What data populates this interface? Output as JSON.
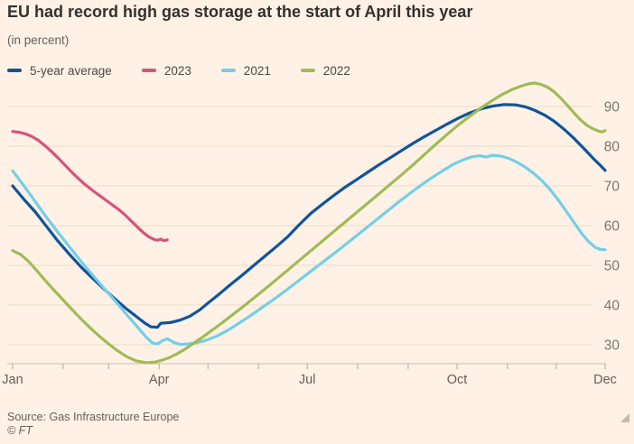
{
  "header": {
    "title": "EU had record high gas storage at the start of April this year",
    "subtitle": "(in percent)"
  },
  "footer": {
    "source": "Source: Gas Infrastructure Europe",
    "copyright": "© FT"
  },
  "colors": {
    "background": "#fff1e5",
    "title_text": "#33302e",
    "muted_text": "#66605b",
    "legend_text": "#4d4843",
    "gridline": "#eddac6",
    "axis_line": "#cbbfae",
    "tick": "#b3a896",
    "y_label": "#7d766e",
    "x_label": "#66605b"
  },
  "chart_data": {
    "type": "line",
    "title": "EU had record high gas storage at the start of April this year",
    "unit": "percent",
    "x_unit": "day_of_year",
    "x_axis": {
      "month_tick_days": [
        1,
        32,
        60,
        91,
        121,
        152,
        182,
        213,
        244,
        274,
        305,
        335,
        365
      ],
      "labels": [
        {
          "label": "Jan",
          "day": 1
        },
        {
          "label": "Apr",
          "day": 91
        },
        {
          "label": "Jul",
          "day": 182
        },
        {
          "label": "Oct",
          "day": 274
        },
        {
          "label": "Dec",
          "day": 365
        }
      ]
    },
    "y_axis": {
      "side": "right",
      "gridlines": [
        30,
        40,
        50,
        60,
        70,
        80,
        90
      ],
      "min": 24.5,
      "max": 97
    },
    "legend_position": "top",
    "series": [
      {
        "name": "5-year average",
        "color": "#0f5499",
        "points": [
          [
            1,
            70
          ],
          [
            8,
            66.6
          ],
          [
            15,
            63.4
          ],
          [
            22,
            59.7
          ],
          [
            29,
            56
          ],
          [
            36,
            52.7
          ],
          [
            43,
            49.6
          ],
          [
            50,
            46.8
          ],
          [
            57,
            44.1
          ],
          [
            64,
            41.5
          ],
          [
            71,
            39
          ],
          [
            78,
            36.8
          ],
          [
            82,
            35.5
          ],
          [
            86,
            34.5
          ],
          [
            90,
            34.4
          ],
          [
            92,
            35.4
          ],
          [
            98,
            35.6
          ],
          [
            104,
            36.2
          ],
          [
            110,
            37.2
          ],
          [
            116,
            38.8
          ],
          [
            121,
            40.5
          ],
          [
            128,
            42.8
          ],
          [
            135,
            45.2
          ],
          [
            142,
            47.5
          ],
          [
            149,
            49.9
          ],
          [
            156,
            52.3
          ],
          [
            163,
            54.7
          ],
          [
            170,
            57.2
          ],
          [
            177,
            60.2
          ],
          [
            184,
            63
          ],
          [
            191,
            65.3
          ],
          [
            198,
            67.5
          ],
          [
            205,
            69.6
          ],
          [
            212,
            71.5
          ],
          [
            219,
            73.4
          ],
          [
            226,
            75.3
          ],
          [
            233,
            77.1
          ],
          [
            240,
            78.9
          ],
          [
            247,
            80.7
          ],
          [
            254,
            82.4
          ],
          [
            261,
            84
          ],
          [
            268,
            85.6
          ],
          [
            275,
            87.1
          ],
          [
            282,
            88.4
          ],
          [
            289,
            89.4
          ],
          [
            296,
            90.1
          ],
          [
            303,
            90.5
          ],
          [
            310,
            90.4
          ],
          [
            316,
            89.9
          ],
          [
            322,
            89
          ],
          [
            328,
            87.8
          ],
          [
            334,
            86.2
          ],
          [
            340,
            84.2
          ],
          [
            346,
            81.9
          ],
          [
            352,
            79.4
          ],
          [
            358,
            76.8
          ],
          [
            362,
            75.2
          ],
          [
            365,
            73.9
          ]
        ]
      },
      {
        "name": "2023",
        "color": "#d6537b",
        "points": [
          [
            1,
            83.7
          ],
          [
            5,
            83.5
          ],
          [
            9,
            83.1
          ],
          [
            13,
            82.4
          ],
          [
            17,
            81.4
          ],
          [
            21,
            80.1
          ],
          [
            25,
            78.6
          ],
          [
            29,
            77
          ],
          [
            33,
            75.3
          ],
          [
            37,
            73.6
          ],
          [
            41,
            72
          ],
          [
            45,
            70.5
          ],
          [
            49,
            69.2
          ],
          [
            52,
            68.3
          ],
          [
            55,
            67.4
          ],
          [
            58,
            66.5
          ],
          [
            61,
            65.6
          ],
          [
            64,
            64.7
          ],
          [
            67,
            63.8
          ],
          [
            70,
            62.7
          ],
          [
            73,
            61.5
          ],
          [
            76,
            60.3
          ],
          [
            79,
            59.1
          ],
          [
            82,
            58
          ],
          [
            85,
            57.1
          ],
          [
            88,
            56.5
          ],
          [
            90,
            56.3
          ],
          [
            92,
            56.6
          ],
          [
            94,
            56.2
          ],
          [
            96,
            56.4
          ]
        ]
      },
      {
        "name": "2021",
        "color": "#73cfe8",
        "points": [
          [
            1,
            73.8
          ],
          [
            8,
            70
          ],
          [
            15,
            66
          ],
          [
            22,
            62
          ],
          [
            29,
            58.2
          ],
          [
            36,
            54.6
          ],
          [
            43,
            51
          ],
          [
            50,
            47.6
          ],
          [
            57,
            44.3
          ],
          [
            64,
            41
          ],
          [
            71,
            37.6
          ],
          [
            78,
            34.3
          ],
          [
            83,
            31.9
          ],
          [
            87,
            30.4
          ],
          [
            90,
            30.2
          ],
          [
            93,
            31
          ],
          [
            96,
            31.5
          ],
          [
            100,
            30.6
          ],
          [
            104,
            30.1
          ],
          [
            109,
            30.2
          ],
          [
            114,
            30.5
          ],
          [
            119,
            31
          ],
          [
            126,
            32.1
          ],
          [
            133,
            33.6
          ],
          [
            140,
            35.4
          ],
          [
            147,
            37.3
          ],
          [
            154,
            39.3
          ],
          [
            161,
            41.3
          ],
          [
            168,
            43.4
          ],
          [
            175,
            45.6
          ],
          [
            182,
            47.8
          ],
          [
            189,
            50
          ],
          [
            196,
            52.2
          ],
          [
            203,
            54.4
          ],
          [
            210,
            56.7
          ],
          [
            217,
            59
          ],
          [
            224,
            61.3
          ],
          [
            231,
            63.6
          ],
          [
            238,
            65.9
          ],
          [
            245,
            68.1
          ],
          [
            252,
            70.2
          ],
          [
            259,
            72.2
          ],
          [
            266,
            74
          ],
          [
            272,
            75.5
          ],
          [
            278,
            76.6
          ],
          [
            283,
            77.3
          ],
          [
            288,
            77.6
          ],
          [
            292,
            77.3
          ],
          [
            296,
            77.7
          ],
          [
            301,
            77.5
          ],
          [
            306,
            76.9
          ],
          [
            311,
            75.9
          ],
          [
            316,
            74.7
          ],
          [
            321,
            73.2
          ],
          [
            326,
            71.4
          ],
          [
            331,
            69.2
          ],
          [
            336,
            66.6
          ],
          [
            341,
            63.7
          ],
          [
            346,
            60.7
          ],
          [
            351,
            57.8
          ],
          [
            355,
            55.9
          ],
          [
            359,
            54.5
          ],
          [
            362,
            54
          ],
          [
            365,
            53.9
          ]
        ]
      },
      {
        "name": "2022",
        "color": "#a0bb55",
        "points": [
          [
            1,
            53.7
          ],
          [
            6,
            52.7
          ],
          [
            11,
            50.9
          ],
          [
            16,
            48.6
          ],
          [
            21,
            46.2
          ],
          [
            26,
            43.9
          ],
          [
            31,
            41.7
          ],
          [
            36,
            39.5
          ],
          [
            43,
            36.5
          ],
          [
            50,
            33.7
          ],
          [
            57,
            31.2
          ],
          [
            64,
            28.9
          ],
          [
            71,
            27
          ],
          [
            77,
            25.9
          ],
          [
            83,
            25.5
          ],
          [
            88,
            25.6
          ],
          [
            92,
            26
          ],
          [
            97,
            26.7
          ],
          [
            102,
            27.7
          ],
          [
            107,
            28.9
          ],
          [
            112,
            30.3
          ],
          [
            117,
            31.7
          ],
          [
            121,
            32.9
          ],
          [
            128,
            35
          ],
          [
            135,
            37.2
          ],
          [
            142,
            39.4
          ],
          [
            149,
            41.7
          ],
          [
            156,
            44
          ],
          [
            163,
            46.4
          ],
          [
            170,
            48.8
          ],
          [
            177,
            51.2
          ],
          [
            184,
            53.6
          ],
          [
            191,
            56
          ],
          [
            198,
            58.4
          ],
          [
            205,
            60.8
          ],
          [
            212,
            63.2
          ],
          [
            219,
            65.6
          ],
          [
            226,
            68
          ],
          [
            233,
            70.4
          ],
          [
            240,
            72.8
          ],
          [
            247,
            75.3
          ],
          [
            254,
            77.9
          ],
          [
            261,
            80.5
          ],
          [
            268,
            83
          ],
          [
            275,
            85.4
          ],
          [
            282,
            87.6
          ],
          [
            289,
            89.7
          ],
          [
            296,
            91.6
          ],
          [
            302,
            93.1
          ],
          [
            308,
            94.3
          ],
          [
            313,
            95.1
          ],
          [
            318,
            95.7
          ],
          [
            322,
            95.9
          ],
          [
            326,
            95.5
          ],
          [
            330,
            94.8
          ],
          [
            334,
            93.6
          ],
          [
            338,
            92
          ],
          [
            342,
            90.2
          ],
          [
            346,
            88.3
          ],
          [
            350,
            86.6
          ],
          [
            354,
            85.2
          ],
          [
            358,
            84.3
          ],
          [
            361,
            83.8
          ],
          [
            363,
            83.6
          ],
          [
            365,
            83.9
          ]
        ]
      }
    ]
  }
}
